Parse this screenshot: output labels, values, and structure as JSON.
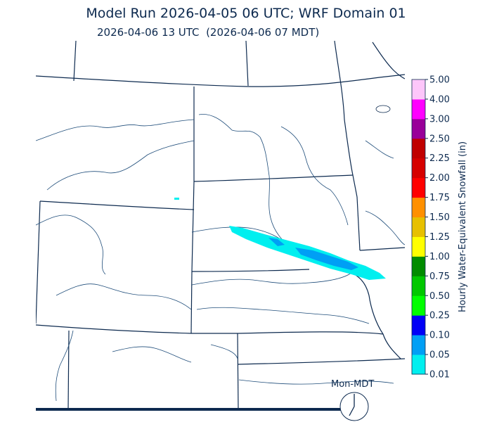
{
  "header": {
    "title": "Model Run 2026-04-05 06 UTC; WRF Domain 01",
    "subtitle": "2026-04-06 13 UTC  (2026-04-06 07 MDT)"
  },
  "colorbar": {
    "label": "Hourly Water-Equivalent Snowfall (in)",
    "ticks": [
      "0.01",
      "0.05",
      "0.10",
      "0.25",
      "0.50",
      "0.75",
      "1.00",
      "1.25",
      "1.50",
      "1.75",
      "2.00",
      "2.25",
      "2.50",
      "3.00",
      "4.00",
      "5.00"
    ],
    "colors": [
      "#00efef",
      "#009ff5",
      "#0000f6",
      "#00ff00",
      "#00c800",
      "#008c00",
      "#ffff00",
      "#e7c000",
      "#ff9000",
      "#ff0000",
      "#d60000",
      "#c00000",
      "#990099",
      "#ff00ff",
      "#fdc6fa"
    ]
  },
  "clock": {
    "label": "Mon-MDT",
    "time": "07 MDT"
  },
  "colors": {
    "border": "#0d2a4f",
    "river": "#1f4d7a",
    "snow_light": "#00efef",
    "snow_medium": "#009ff5"
  }
}
